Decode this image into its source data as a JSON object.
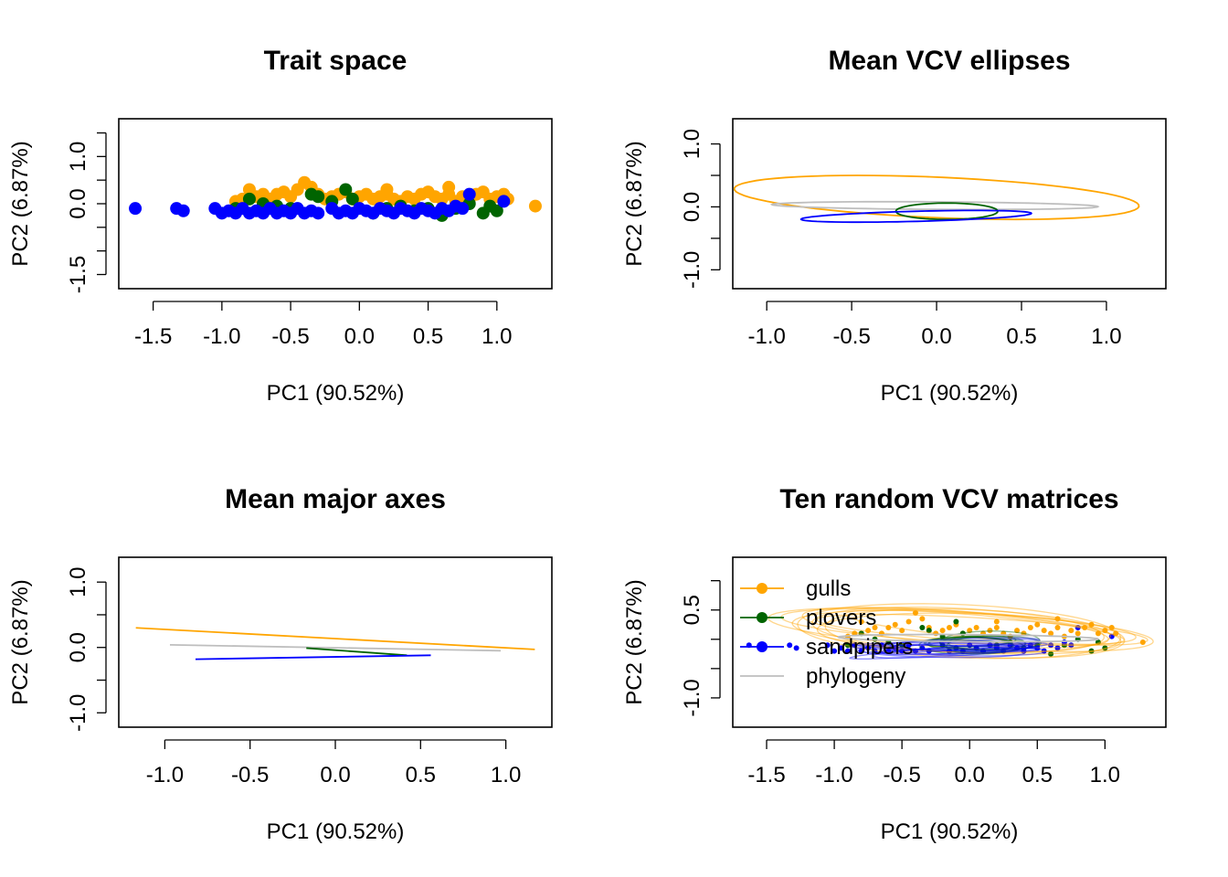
{
  "colors": {
    "gulls": "#FFA500",
    "plovers": "#006400",
    "sandpipers": "#0000FF",
    "phylogeny": "#BEBEBE"
  },
  "panels": [
    {
      "title": "Trait space",
      "xlabel": "PC1 (90.52%)",
      "ylabel": "PC2 (6.87%)",
      "xticks": [
        "-1.5",
        "-1.0",
        "-0.5",
        "0.0",
        "0.5",
        "1.0"
      ],
      "yticks": [
        "-1.5",
        "0.0",
        "1.0"
      ]
    },
    {
      "title": "Mean VCV ellipses",
      "xlabel": "PC1 (90.52%)",
      "ylabel": "PC2 (6.87%)",
      "xticks": [
        "-1.0",
        "-0.5",
        "0.0",
        "0.5",
        "1.0"
      ],
      "yticks": [
        "-1.0",
        "0.0",
        "1.0"
      ]
    },
    {
      "title": "Mean major axes",
      "xlabel": "PC1 (90.52%)",
      "ylabel": "PC2 (6.87%)",
      "xticks": [
        "-1.0",
        "-0.5",
        "0.0",
        "0.5",
        "1.0"
      ],
      "yticks": [
        "-1.0",
        "0.0",
        "1.0"
      ]
    },
    {
      "title": "Ten random VCV matrices",
      "xlabel": "PC1 (90.52%)",
      "ylabel": "PC2 (6.87%)",
      "xticks": [
        "-1.5",
        "-1.0",
        "-0.5",
        "0.0",
        "0.5",
        "1.0"
      ],
      "yticks": [
        "-1.0",
        "0.5"
      ]
    }
  ],
  "legend": [
    "gulls",
    "plovers",
    "sandpipers",
    "phylogeny"
  ],
  "chart_data": [
    {
      "type": "scatter",
      "title": "Trait space",
      "xlabel": "PC1 (90.52%)",
      "ylabel": "PC2 (6.87%)",
      "xlim": [
        -1.75,
        1.4
      ],
      "ylim": [
        -1.8,
        1.8
      ],
      "series": [
        {
          "name": "gulls",
          "points": [
            [
              1.28,
              -0.05
            ],
            [
              1.08,
              0.1
            ],
            [
              1.05,
              0.2
            ],
            [
              1.0,
              0.15
            ],
            [
              0.95,
              0.1
            ],
            [
              0.9,
              0.25
            ],
            [
              0.85,
              0.2
            ],
            [
              0.8,
              0.1
            ],
            [
              0.75,
              0.15
            ],
            [
              0.7,
              0.05
            ],
            [
              0.65,
              0.2
            ],
            [
              0.6,
              0.1
            ],
            [
              0.55,
              0.15
            ],
            [
              0.5,
              0.25
            ],
            [
              0.45,
              0.2
            ],
            [
              0.4,
              0.1
            ],
            [
              0.35,
              0.15
            ],
            [
              0.3,
              0.05
            ],
            [
              0.25,
              0.1
            ],
            [
              0.2,
              0.2
            ],
            [
              0.15,
              0.15
            ],
            [
              0.1,
              0.1
            ],
            [
              0.05,
              0.2
            ],
            [
              0.0,
              0.15
            ],
            [
              -0.05,
              0.1
            ],
            [
              -0.1,
              0.25
            ],
            [
              -0.15,
              0.2
            ],
            [
              -0.2,
              0.15
            ],
            [
              -0.25,
              0.1
            ],
            [
              -0.3,
              0.2
            ],
            [
              -0.4,
              0.45
            ],
            [
              -0.45,
              0.3
            ],
            [
              -0.5,
              0.15
            ],
            [
              -0.55,
              0.25
            ],
            [
              -0.6,
              0.2
            ],
            [
              -0.65,
              0.1
            ],
            [
              -0.7,
              0.2
            ],
            [
              -0.75,
              0.15
            ],
            [
              -0.8,
              0.3
            ],
            [
              -0.85,
              0.1
            ],
            [
              -0.9,
              0.05
            ],
            [
              0.65,
              0.35
            ],
            [
              0.2,
              0.3
            ],
            [
              -0.35,
              0.35
            ]
          ]
        },
        {
          "name": "plovers",
          "points": [
            [
              1.0,
              -0.15
            ],
            [
              0.95,
              -0.05
            ],
            [
              0.9,
              -0.2
            ],
            [
              0.8,
              0.0
            ],
            [
              0.7,
              -0.1
            ],
            [
              0.6,
              -0.25
            ],
            [
              0.5,
              -0.1
            ],
            [
              0.4,
              -0.15
            ],
            [
              0.3,
              -0.05
            ],
            [
              0.2,
              -0.1
            ],
            [
              0.1,
              -0.2
            ],
            [
              -0.05,
              0.1
            ],
            [
              -0.1,
              0.3
            ],
            [
              -0.2,
              0.05
            ],
            [
              -0.3,
              0.15
            ],
            [
              -0.35,
              0.2
            ],
            [
              -0.5,
              -0.1
            ],
            [
              -0.6,
              -0.05
            ],
            [
              -0.7,
              0.0
            ],
            [
              -0.8,
              0.1
            ],
            [
              -0.9,
              -0.1
            ]
          ]
        },
        {
          "name": "sandpipers",
          "points": [
            [
              -1.63,
              -0.1
            ],
            [
              -1.33,
              -0.1
            ],
            [
              -1.28,
              -0.15
            ],
            [
              -1.05,
              -0.1
            ],
            [
              -1.0,
              -0.2
            ],
            [
              -0.95,
              -0.15
            ],
            [
              -0.9,
              -0.2
            ],
            [
              -0.85,
              -0.1
            ],
            [
              -0.8,
              -0.2
            ],
            [
              -0.75,
              -0.15
            ],
            [
              -0.7,
              -0.2
            ],
            [
              -0.65,
              -0.1
            ],
            [
              -0.6,
              -0.2
            ],
            [
              -0.55,
              -0.15
            ],
            [
              -0.5,
              -0.2
            ],
            [
              -0.45,
              -0.1
            ],
            [
              -0.4,
              -0.2
            ],
            [
              -0.35,
              -0.15
            ],
            [
              -0.3,
              -0.2
            ],
            [
              -0.2,
              -0.1
            ],
            [
              -0.15,
              -0.2
            ],
            [
              -0.1,
              -0.15
            ],
            [
              -0.05,
              -0.2
            ],
            [
              0.0,
              -0.1
            ],
            [
              0.05,
              -0.15
            ],
            [
              0.1,
              -0.2
            ],
            [
              0.15,
              -0.1
            ],
            [
              0.2,
              -0.15
            ],
            [
              0.25,
              -0.2
            ],
            [
              0.3,
              -0.1
            ],
            [
              0.35,
              -0.15
            ],
            [
              0.4,
              -0.2
            ],
            [
              0.45,
              -0.1
            ],
            [
              0.5,
              -0.15
            ],
            [
              0.55,
              -0.2
            ],
            [
              0.6,
              -0.1
            ],
            [
              0.65,
              -0.15
            ],
            [
              0.7,
              -0.05
            ],
            [
              0.75,
              -0.1
            ],
            [
              0.8,
              0.2
            ],
            [
              1.05,
              0.05
            ]
          ]
        }
      ]
    },
    {
      "type": "ellipse",
      "title": "Mean VCV ellipses",
      "xlabel": "PC1 (90.52%)",
      "ylabel": "PC2 (6.87%)",
      "xlim": [
        -1.2,
        1.35
      ],
      "ylim": [
        -1.3,
        1.4
      ],
      "series": [
        {
          "name": "gulls",
          "cx": 0.0,
          "cy": 0.15,
          "a": 1.2,
          "b": 0.32,
          "angle_deg": -7
        },
        {
          "name": "phylogeny",
          "cx": -0.01,
          "cy": 0.02,
          "a": 0.96,
          "b": 0.06,
          "angle_deg": -1
        },
        {
          "name": "plovers",
          "cx": 0.06,
          "cy": -0.07,
          "a": 0.3,
          "b": 0.13,
          "angle_deg": 0
        },
        {
          "name": "sandpipers",
          "cx": -0.12,
          "cy": -0.15,
          "a": 0.68,
          "b": 0.08,
          "angle_deg": 4
        }
      ]
    },
    {
      "type": "line",
      "title": "Mean major axes",
      "xlabel": "PC1 (90.52%)",
      "ylabel": "PC2 (6.87%)",
      "xlim": [
        -1.27,
        1.27
      ],
      "ylim": [
        -1.22,
        1.38
      ],
      "series": [
        {
          "name": "gulls",
          "x": [
            -1.17,
            1.17
          ],
          "y": [
            0.3,
            -0.03
          ]
        },
        {
          "name": "phylogeny",
          "x": [
            -0.97,
            0.97
          ],
          "y": [
            0.04,
            -0.05
          ]
        },
        {
          "name": "plovers",
          "x": [
            -0.17,
            0.42
          ],
          "y": [
            -0.01,
            -0.12
          ]
        },
        {
          "name": "sandpipers",
          "x": [
            -0.82,
            0.56
          ],
          "y": [
            -0.18,
            -0.12
          ]
        }
      ]
    },
    {
      "type": "scatter",
      "title": "Ten random VCV matrices",
      "xlabel": "PC1 (90.52%)",
      "ylabel": "PC2 (6.87%)",
      "xlim": [
        -1.75,
        1.45
      ],
      "ylim": [
        -1.5,
        1.4
      ],
      "legend": {
        "position": "top-left",
        "entries": [
          "gulls",
          "plovers",
          "sandpipers",
          "phylogeny"
        ]
      },
      "ellipse_count_per_group": 10
    }
  ]
}
